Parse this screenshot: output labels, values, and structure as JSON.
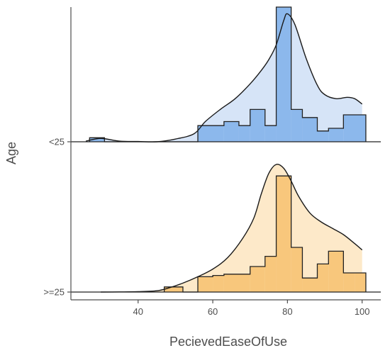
{
  "chart_data": {
    "type": "ridgeline",
    "xlabel": "PecievedEaseOfUse",
    "ylabel": "Age",
    "xlim": [
      22,
      105
    ],
    "x_ticks": [
      40,
      60,
      80,
      100
    ],
    "grid": false,
    "legend": "none",
    "series": [
      {
        "name": "<25",
        "fill_color": "#d6e4f7",
        "bar_color": "#8cb8ec",
        "hist_bins": [
          {
            "x0": 27,
            "x1": 31,
            "y": 0.03
          },
          {
            "x0": 31,
            "x1": 56,
            "y": 0.0
          },
          {
            "x0": 56,
            "x1": 63,
            "y": 0.12
          },
          {
            "x0": 63,
            "x1": 67,
            "y": 0.15
          },
          {
            "x0": 67,
            "x1": 70,
            "y": 0.12
          },
          {
            "x0": 70,
            "x1": 74,
            "y": 0.24
          },
          {
            "x0": 74,
            "x1": 77,
            "y": 0.12
          },
          {
            "x0": 77,
            "x1": 81,
            "y": 1.0
          },
          {
            "x0": 81,
            "x1": 84,
            "y": 0.24
          },
          {
            "x0": 84,
            "x1": 88,
            "y": 0.18
          },
          {
            "x0": 88,
            "x1": 91,
            "y": 0.08
          },
          {
            "x0": 91,
            "x1": 95,
            "y": 0.1
          },
          {
            "x0": 95,
            "x1": 101,
            "y": 0.2
          }
        ],
        "density": [
          [
            26,
            0.005
          ],
          [
            30,
            0.025
          ],
          [
            35,
            0.005
          ],
          [
            40,
            0.002
          ],
          [
            45,
            0.0
          ],
          [
            50,
            0.02
          ],
          [
            55,
            0.06
          ],
          [
            58,
            0.15
          ],
          [
            62,
            0.24
          ],
          [
            66,
            0.32
          ],
          [
            70,
            0.43
          ],
          [
            73,
            0.53
          ],
          [
            75,
            0.61
          ],
          [
            77,
            0.72
          ],
          [
            79,
            0.9
          ],
          [
            80,
            0.95
          ],
          [
            82,
            0.87
          ],
          [
            85,
            0.62
          ],
          [
            88,
            0.42
          ],
          [
            90,
            0.35
          ],
          [
            93,
            0.32
          ],
          [
            96,
            0.33
          ],
          [
            98,
            0.32
          ],
          [
            100,
            0.28
          ]
        ]
      },
      {
        "name": ">=25",
        "fill_color": "#fde9c9",
        "bar_color": "#f8c77c",
        "hist_bins": [
          {
            "x0": 47,
            "x1": 52,
            "y": 0.04
          },
          {
            "x0": 52,
            "x1": 56,
            "y": 0.0
          },
          {
            "x0": 56,
            "x1": 60,
            "y": 0.12
          },
          {
            "x0": 60,
            "x1": 63,
            "y": 0.13
          },
          {
            "x0": 63,
            "x1": 70,
            "y": 0.14
          },
          {
            "x0": 70,
            "x1": 74,
            "y": 0.2
          },
          {
            "x0": 74,
            "x1": 77,
            "y": 0.28
          },
          {
            "x0": 77,
            "x1": 81,
            "y": 0.91
          },
          {
            "x0": 81,
            "x1": 84,
            "y": 0.35
          },
          {
            "x0": 84,
            "x1": 88,
            "y": 0.11
          },
          {
            "x0": 88,
            "x1": 91,
            "y": 0.22
          },
          {
            "x0": 91,
            "x1": 95,
            "y": 0.32
          },
          {
            "x0": 95,
            "x1": 98,
            "y": 0.15
          },
          {
            "x0": 98,
            "x1": 101,
            "y": 0.15
          }
        ],
        "density": [
          [
            30,
            0.0
          ],
          [
            35,
            0.001
          ],
          [
            40,
            0.003
          ],
          [
            45,
            0.01
          ],
          [
            48,
            0.03
          ],
          [
            52,
            0.07
          ],
          [
            56,
            0.12
          ],
          [
            60,
            0.18
          ],
          [
            64,
            0.27
          ],
          [
            68,
            0.42
          ],
          [
            71,
            0.58
          ],
          [
            73,
            0.77
          ],
          [
            75,
            0.93
          ],
          [
            77,
            1.0
          ],
          [
            79,
            0.97
          ],
          [
            81,
            0.87
          ],
          [
            83,
            0.75
          ],
          [
            86,
            0.62
          ],
          [
            89,
            0.55
          ],
          [
            92,
            0.5
          ],
          [
            95,
            0.45
          ],
          [
            98,
            0.38
          ],
          [
            100,
            0.33
          ]
        ]
      }
    ]
  }
}
